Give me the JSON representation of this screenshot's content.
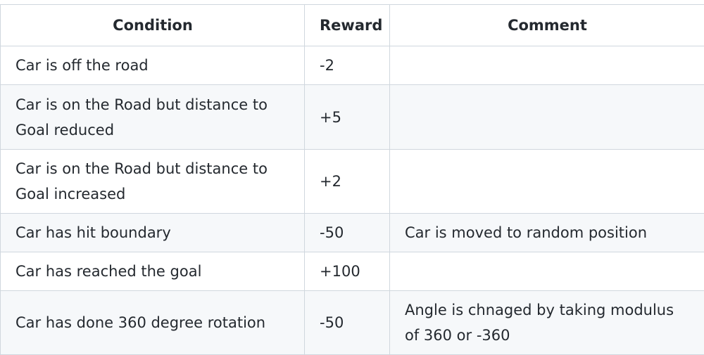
{
  "table": {
    "headers": [
      "Condition",
      "Reward",
      "Comment"
    ],
    "rows": [
      {
        "condition": "Car is off the road",
        "reward": "-2",
        "comment": ""
      },
      {
        "condition": "Car is on the Road but distance to Goal reduced",
        "reward": "+5",
        "comment": ""
      },
      {
        "condition": "Car is on the Road but distance to Goal increased",
        "reward": "+2",
        "comment": ""
      },
      {
        "condition": "Car has hit boundary",
        "reward": "-50",
        "comment": "Car is moved to random position"
      },
      {
        "condition": "Car has reached the goal",
        "reward": "+100",
        "comment": ""
      },
      {
        "condition": "Car has done 360 degree rotation",
        "reward": "-50",
        "comment": "Angle is chnaged by taking modulus of 360 or -360"
      }
    ]
  },
  "colors": {
    "border": "#d0d7de",
    "stripe": "#f6f8fa",
    "text": "#24292f"
  }
}
